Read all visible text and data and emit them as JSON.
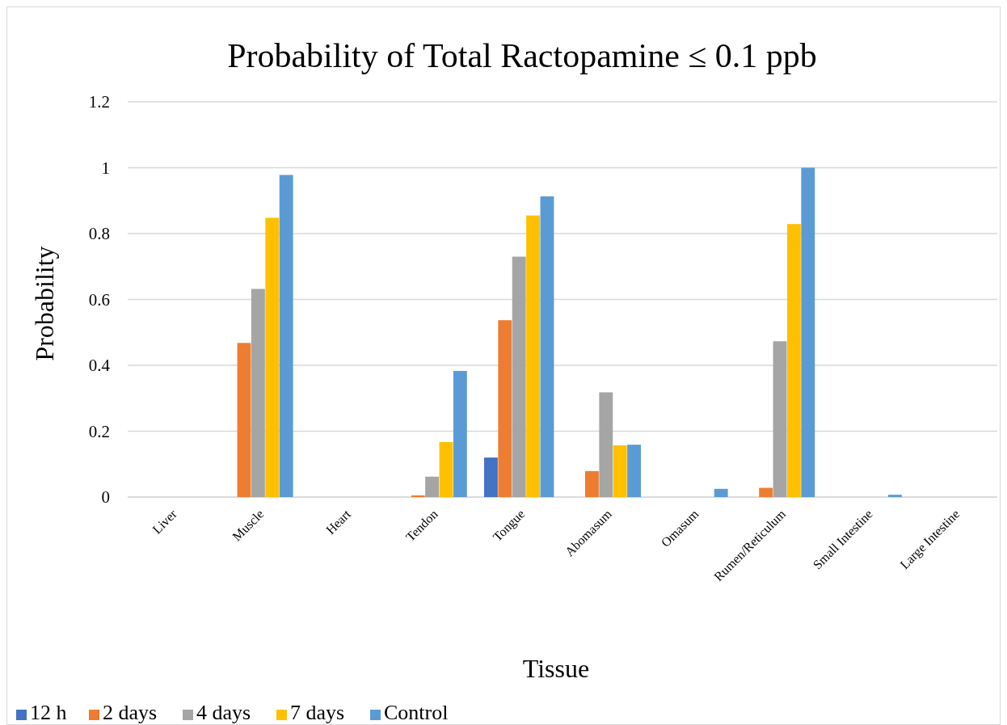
{
  "chart_data": {
    "type": "bar",
    "title": "Probability of Total Ractopamine ≤ 0.1 ppb",
    "xlabel": "Tissue",
    "ylabel": "Probability",
    "categories": [
      "Liver",
      "Muscle",
      "Heart",
      "Tendon",
      "Tongue",
      "Abomasum",
      "Omasum",
      "Rumen/Reticulum",
      "Small Intestine",
      "Large Intestine"
    ],
    "series": [
      {
        "name": "12 h",
        "color": "#4472c4",
        "values": [
          0,
          0,
          0,
          0,
          0.12,
          0,
          0,
          0,
          0,
          0
        ]
      },
      {
        "name": "2 days",
        "color": "#ed7d31",
        "values": [
          0,
          0.468,
          0,
          0.005,
          0.537,
          0.079,
          0,
          0.028,
          0,
          0
        ]
      },
      {
        "name": "4 days",
        "color": "#a5a5a5",
        "values": [
          0,
          0.632,
          0,
          0.062,
          0.73,
          0.318,
          0,
          0.473,
          0,
          0
        ]
      },
      {
        "name": "7 days",
        "color": "#ffc000",
        "values": [
          0,
          0.848,
          0,
          0.167,
          0.855,
          0.157,
          0,
          0.829,
          0,
          0
        ]
      },
      {
        "name": "Control",
        "color": "#5b9bd5",
        "values": [
          0,
          0.978,
          0,
          0.383,
          0.913,
          0.159,
          0.025,
          1.0,
          0.007,
          0
        ]
      }
    ],
    "ylim": [
      0,
      1.2
    ],
    "yticks": [
      0,
      0.2,
      0.4,
      0.6,
      0.8,
      1,
      1.2
    ],
    "grid": "y",
    "legend": "bottom left"
  }
}
